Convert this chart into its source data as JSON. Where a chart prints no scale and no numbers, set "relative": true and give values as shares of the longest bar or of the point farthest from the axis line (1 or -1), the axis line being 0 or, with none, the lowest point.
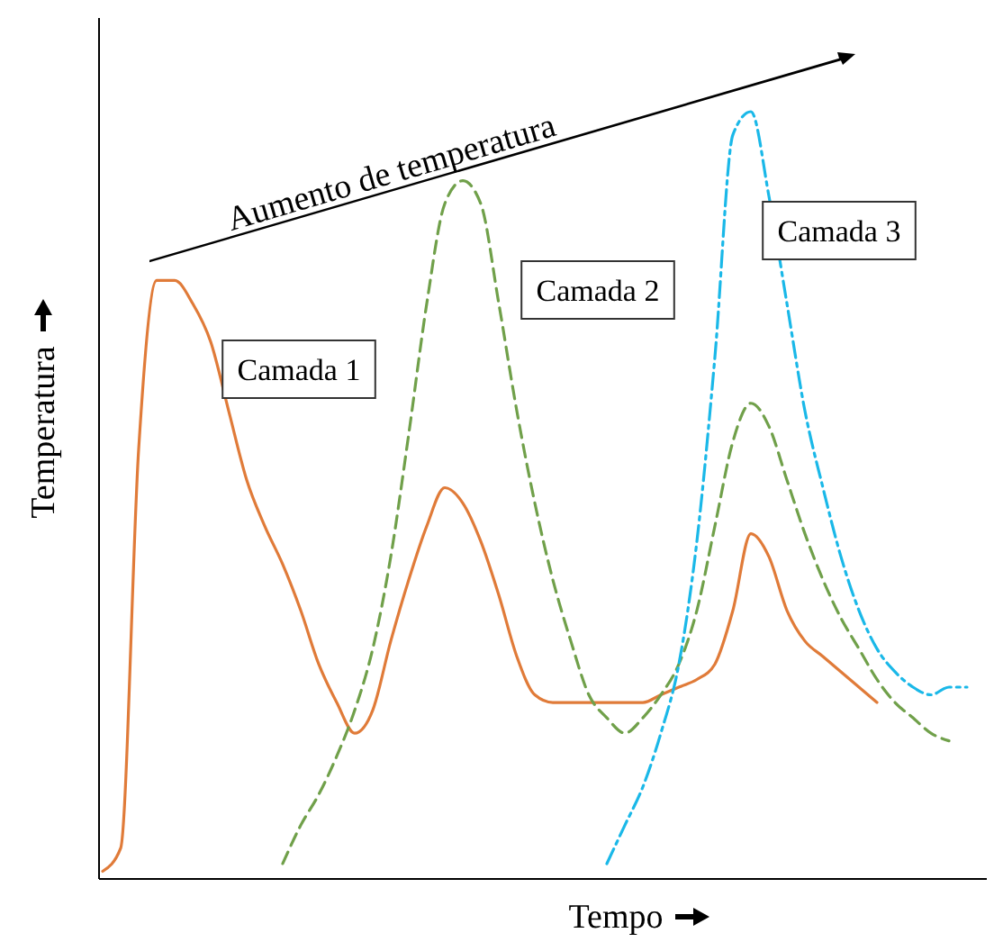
{
  "chart_data": {
    "type": "line",
    "relative": true,
    "xlabel": "Tempo",
    "ylabel": "Temperatura",
    "annotations": [
      "Aumento de temperatura"
    ],
    "categories": [
      null,
      null,
      null,
      null,
      null,
      null,
      null,
      null,
      null,
      null,
      null,
      null,
      null,
      null,
      null,
      null,
      null,
      null,
      null,
      null,
      null,
      null,
      null,
      null,
      null,
      null,
      null,
      null,
      null,
      null,
      null,
      null,
      null,
      null,
      null,
      null,
      null,
      null,
      null,
      null,
      null,
      null,
      null,
      null,
      null,
      null,
      null,
      null,
      null
    ],
    "series": [
      {
        "name": "Camada 1",
        "color": "#e07b39",
        "line_style": "solid",
        "values": [
          0.01,
          0.04,
          0.56,
          0.78,
          0.78,
          0.75,
          0.7,
          0.61,
          0.52,
          0.46,
          0.41,
          0.35,
          0.28,
          0.23,
          0.19,
          0.22,
          0.31,
          0.39,
          0.46,
          0.51,
          0.49,
          0.44,
          0.37,
          0.29,
          0.24,
          0.23,
          0.23,
          0.23,
          0.23,
          0.23,
          0.23,
          0.24,
          0.25,
          0.26,
          0.28,
          0.35,
          0.45,
          0.42,
          0.35,
          0.31,
          0.29,
          0.27,
          0.25,
          0.23,
          null,
          null,
          null,
          null,
          null
        ]
      },
      {
        "name": "Camada 2",
        "color": "#70a04a",
        "line_style": "dashed",
        "values": [
          null,
          null,
          null,
          null,
          null,
          null,
          null,
          null,
          null,
          null,
          0.02,
          0.07,
          0.11,
          0.16,
          0.22,
          0.3,
          0.42,
          0.58,
          0.75,
          0.88,
          0.91,
          0.88,
          0.75,
          0.61,
          0.49,
          0.39,
          0.31,
          0.24,
          0.21,
          0.19,
          0.21,
          0.24,
          0.28,
          0.35,
          0.46,
          0.57,
          0.62,
          0.59,
          0.52,
          0.45,
          0.39,
          0.34,
          0.3,
          0.26,
          0.23,
          0.21,
          0.19,
          0.18,
          null
        ]
      },
      {
        "name": "Camada 3",
        "color": "#1ab8e8",
        "line_style": "dashdot",
        "values": [
          null,
          null,
          null,
          null,
          null,
          null,
          null,
          null,
          null,
          null,
          null,
          null,
          null,
          null,
          null,
          null,
          null,
          null,
          null,
          null,
          null,
          null,
          null,
          null,
          null,
          null,
          null,
          null,
          0.02,
          0.07,
          0.12,
          0.19,
          0.28,
          0.44,
          0.68,
          0.97,
          1.0,
          0.89,
          0.75,
          0.61,
          0.51,
          0.42,
          0.35,
          0.3,
          0.27,
          0.25,
          0.24,
          0.25,
          0.25
        ]
      }
    ]
  }
}
